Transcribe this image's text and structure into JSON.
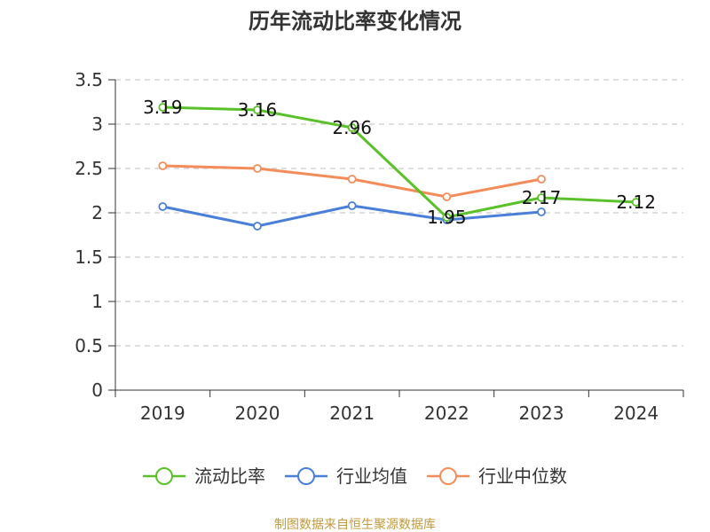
{
  "chart_data": {
    "type": "line",
    "title": "历年流动比率变化情况",
    "categories": [
      "2019",
      "2020",
      "2021",
      "2022",
      "2023",
      "2024"
    ],
    "ylim": [
      0,
      3.5
    ],
    "yticks": [
      "0",
      "0.5",
      "1",
      "1.5",
      "2",
      "2.5",
      "3",
      "3.5"
    ],
    "grid": true,
    "legend_position": "bottom",
    "series": [
      {
        "name": "流动比率",
        "color": "#5BC12A",
        "values": [
          3.19,
          3.16,
          2.96,
          1.95,
          2.17,
          2.12
        ],
        "labels": [
          "3.19",
          "3.16",
          "2.96",
          "1.95",
          "2.17",
          "2.12"
        ]
      },
      {
        "name": "行业均值",
        "color": "#4A7FD9",
        "values": [
          2.07,
          1.85,
          2.08,
          1.92,
          2.01,
          null
        ]
      },
      {
        "name": "行业中位数",
        "color": "#F48C5A",
        "values": [
          2.53,
          2.5,
          2.38,
          2.18,
          2.38,
          null
        ]
      }
    ]
  },
  "source": {
    "text": "制图数据来自恒生聚源数据库",
    "color": "#C19A3C"
  }
}
